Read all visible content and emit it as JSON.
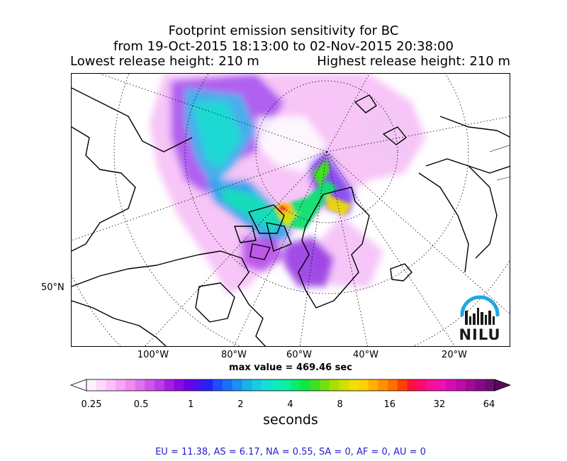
{
  "title": {
    "line1": "Footprint emission sensitivity for BC",
    "line2": "from 19-Oct-2015 18:13:00 to 02-Nov-2015 20:38:00",
    "release_low": "Lowest release height: 210 m",
    "release_high": "Highest release height: 210 m"
  },
  "map": {
    "projection": "north-polar-stereographic",
    "lon_labels": [
      "100°W",
      "80°W",
      "60°W",
      "40°W",
      "20°W"
    ],
    "lat_label": "50°N",
    "gridlines": "dotted",
    "max_value": "max value = 469.46 sec",
    "logo": "NILU"
  },
  "colorbar": {
    "tick_labels": [
      "0.25",
      "0.5",
      "1",
      "2",
      "4",
      "8",
      "16",
      "32",
      "64"
    ],
    "unit": "seconds",
    "scale": "log2",
    "extend": "both",
    "colors": [
      "#fff0ff",
      "#ffd9ff",
      "#fcc0fc",
      "#f5a6f5",
      "#ee8cf0",
      "#e070ee",
      "#d155ec",
      "#c23ae8",
      "#a61ee6",
      "#8a0ae4",
      "#6a00e8",
      "#4b10f0",
      "#2222f8",
      "#1f4cff",
      "#1e6ef8",
      "#1c8ff0",
      "#1ab0e8",
      "#18cce0",
      "#14e0d8",
      "#10eac0",
      "#0af0a0",
      "#06f070",
      "#10e840",
      "#40e020",
      "#70e010",
      "#a8e000",
      "#d0e000",
      "#f0e000",
      "#ffd000",
      "#ffb000",
      "#ff9000",
      "#ff7000",
      "#ff4000",
      "#ff1040",
      "#ff0a70",
      "#f5109a",
      "#ee10b4",
      "#d80ab4",
      "#c00aa6",
      "#a00a96",
      "#860a86",
      "#700a74"
    ],
    "under_color": "#ffffff",
    "over_color": "#5a0a5a"
  },
  "regions_text": "EU = 11.38,  AS = 6.17,  NA = 0.55,  SA = 0,  AF = 0,  AU = 0"
}
